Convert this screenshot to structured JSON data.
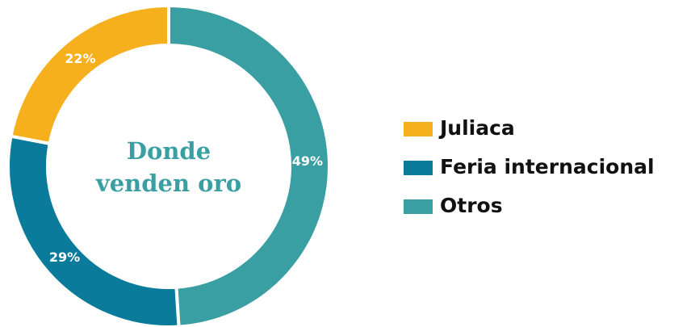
{
  "chart_data": {
    "type": "donut",
    "title": [
      "Donde",
      "venden oro"
    ],
    "categories": [
      "Juliaca",
      "Feria internacional",
      "Otros"
    ],
    "values": [
      22,
      29,
      49
    ],
    "value_labels": [
      "22%",
      "29%",
      "49%"
    ],
    "colors": [
      "#f6b01e",
      "#0b7b9b",
      "#3a9fa2"
    ],
    "legend": "right"
  }
}
